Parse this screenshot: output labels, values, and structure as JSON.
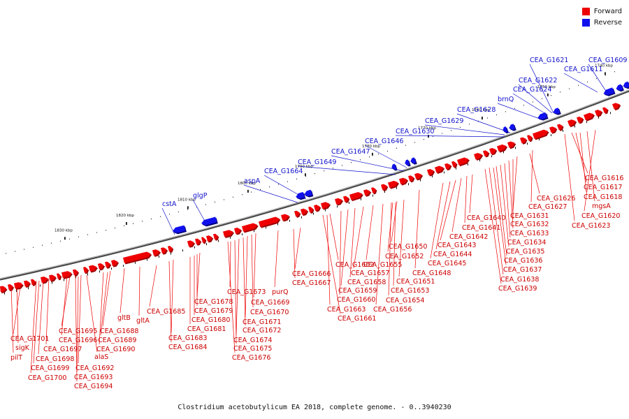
{
  "legend": {
    "forward_label": "Forward",
    "reverse_label": "Reverse",
    "forward_color": "#ee0000",
    "reverse_color": "#1010ee"
  },
  "caption": "Clostridium acetobutylicum EA 2018, complete genome. - 0..3940230",
  "colors": {
    "backbone": "#777777",
    "tick": "#111111",
    "label_forward": "#cc0000",
    "label_reverse": "#1111cc",
    "leader_forward": "#ee0000",
    "leader_reverse": "#1010cc"
  },
  "scale_labels": [
    "1740 kbp",
    "1750 kbp",
    "1760 kbp",
    "1770 kbp",
    "1780 kbp",
    "1790 kbp",
    "1800 kbp",
    "1810 kbp",
    "1820 kbp",
    "1830 kbp"
  ],
  "reverse_labels": [
    "CEA_G1609",
    "CEA_G1611",
    "CEA_G1621",
    "CEA_G1622",
    "CEA_G1624",
    "brnQ",
    "CEA_G1628",
    "CEA_G1629",
    "CEA_G1630",
    "CEA_G1646",
    "CEA_G1647",
    "CEA_G1649",
    "CEA_G1664",
    "aspA",
    "glgP",
    "cstA"
  ],
  "forward_labels": [
    "CEA_G1616",
    "CEA_G1617",
    "CEA_G1618",
    "mgsA",
    "CEA_G1620",
    "CEA_G1623",
    "CEA_G1626",
    "CEA_G1627",
    "CEA_G1631",
    "CEA_G1632",
    "CEA_G1633",
    "CEA_G1634",
    "CEA_G1635",
    "CEA_G1636",
    "CEA_G1637",
    "CEA_G1638",
    "CEA_G1639",
    "CEA_G1640",
    "CEA_G1641",
    "CEA_G1642",
    "CEA_G1643",
    "CEA_G1644",
    "CEA_G1645",
    "CEA_G1648",
    "CEA_G1650",
    "CEA_G1652",
    "CEA_G1651",
    "CEA_G1653",
    "CEA_G1654",
    "CEA_G1656",
    "CEA_G1655",
    "CEA_G1657",
    "CEA_G1658",
    "CEA_G1659",
    "CEA_G1660",
    "CEA_G1662",
    "CEA_G1663",
    "CEA_G1661",
    "CEA_G1666",
    "CEA_G1667",
    "purQ",
    "CEA_G1669",
    "CEA_G1670",
    "CEA_G1671",
    "CEA_G1672",
    "CEA_G1673",
    "CEA_G1674",
    "CEA_G1675",
    "CEA_G1676",
    "CEA_G1678",
    "CEA_G1679",
    "CEA_G1680",
    "CEA_G1681",
    "CEA_G1683",
    "CEA_G1684",
    "CEA_G1685",
    "gltA",
    "gltB",
    "CEA_G1688",
    "CEA_G1689",
    "CEA_G1690",
    "CEA_G1695",
    "CEA_G1696",
    "CEA_G1697",
    "CEA_G1698",
    "CEA_G1699",
    "CEA_G1700",
    "CEA_G1701",
    "sigK",
    "pilT",
    "alaS",
    "CEA_G1692",
    "CEA_G1693",
    "CEA_G1694"
  ]
}
